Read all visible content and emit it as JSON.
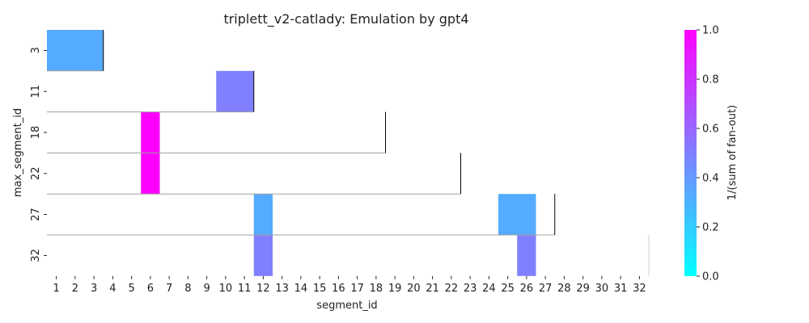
{
  "chart_data": {
    "type": "heatmap",
    "title": "triplett_v2-catlady: Emulation by gpt4",
    "xlabel": "segment_id",
    "ylabel": "max_segment_id",
    "x_categories": [
      "1",
      "2",
      "3",
      "4",
      "5",
      "6",
      "7",
      "8",
      "9",
      "10",
      "11",
      "12",
      "13",
      "14",
      "15",
      "16",
      "17",
      "18",
      "19",
      "20",
      "21",
      "22",
      "23",
      "24",
      "25",
      "26",
      "27",
      "28",
      "29",
      "30",
      "31",
      "32"
    ],
    "y_categories": [
      "3",
      "11",
      "18",
      "22",
      "27",
      "32"
    ],
    "cells": [
      {
        "row": "3",
        "x_from": 1,
        "x_to": 3,
        "value": 0.33
      },
      {
        "row": "11",
        "x_from": 10,
        "x_to": 11,
        "value": 0.5
      },
      {
        "row": "18",
        "x_from": 6,
        "x_to": 6,
        "value": 1.0
      },
      {
        "row": "22",
        "x_from": 6,
        "x_to": 6,
        "value": 1.0
      },
      {
        "row": "27",
        "x_from": 12,
        "x_to": 12,
        "value": 0.33
      },
      {
        "row": "27",
        "x_from": 25,
        "x_to": 26,
        "value": 0.33
      },
      {
        "row": "32",
        "x_from": 12,
        "x_to": 12,
        "value": 0.5
      },
      {
        "row": "32",
        "x_from": 26,
        "x_to": 26,
        "value": 0.5
      }
    ],
    "row_end_markers": [
      {
        "row": "3",
        "after_segment": 3
      },
      {
        "row": "11",
        "after_segment": 11
      },
      {
        "row": "18",
        "after_segment": 18
      },
      {
        "row": "22",
        "after_segment": 22
      },
      {
        "row": "27",
        "after_segment": 27
      },
      {
        "row": "32",
        "after_segment": 32
      }
    ],
    "colorbar": {
      "label": "1/(sum of fan-out)",
      "range": [
        0,
        1
      ],
      "ticks": [
        "0.0",
        "0.2",
        "0.4",
        "0.6",
        "0.8",
        "1.0"
      ],
      "colormap": "cool",
      "color_low": "#00ffff",
      "color_high": "#ff00ff"
    }
  }
}
